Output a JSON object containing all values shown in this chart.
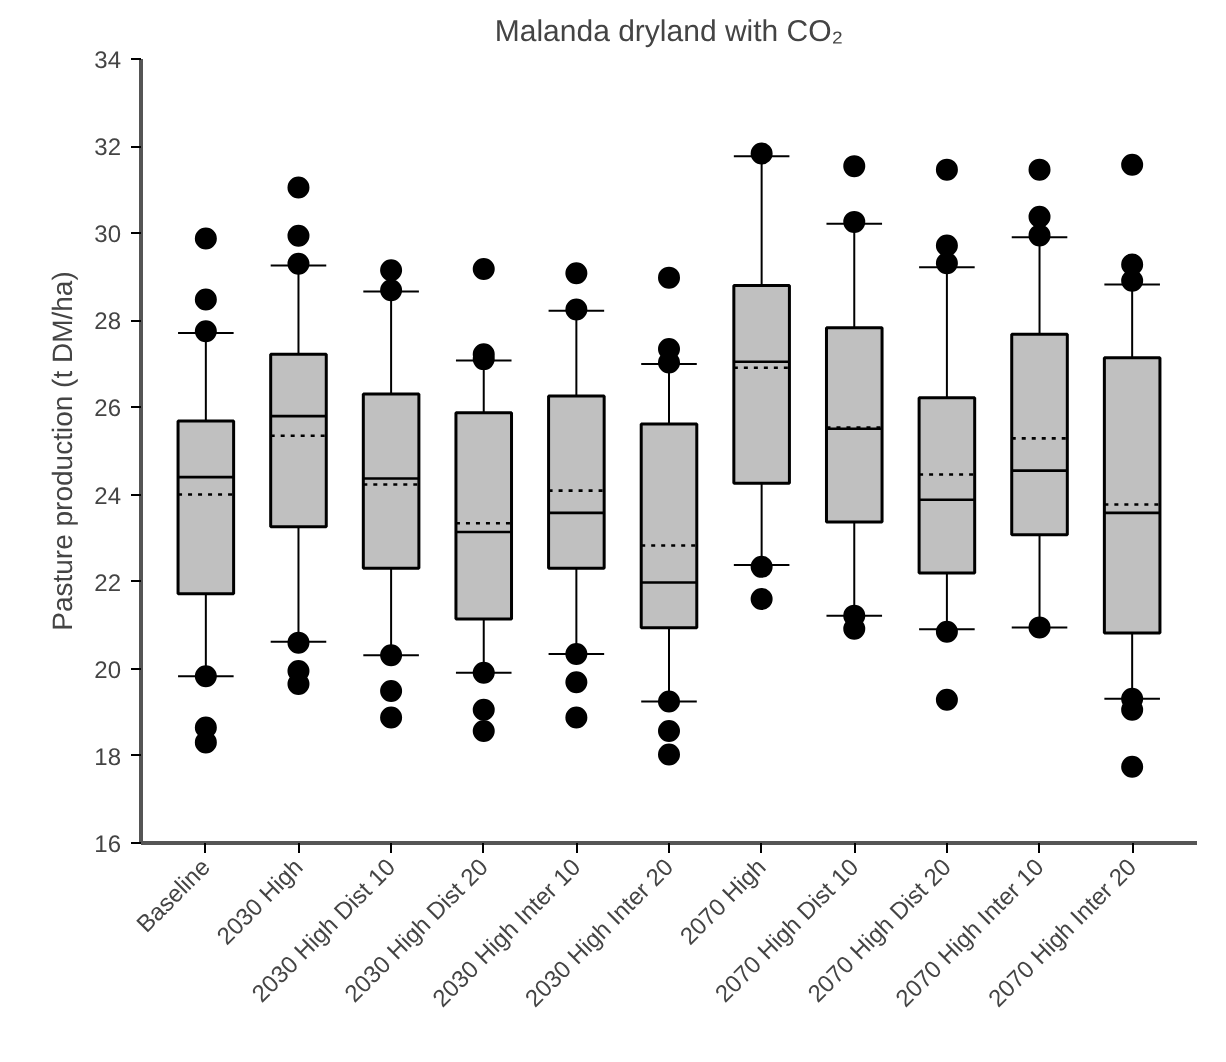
{
  "chart_data": {
    "type": "box",
    "title": "Malanda dryland with CO₂",
    "ylabel": "Pasture production (t DM/ha)",
    "categories": [
      "Baseline",
      "2030 High",
      "2030 High Dist 10",
      "2030 High Dist 20",
      "2030 High Inter 10",
      "2030 High Inter 20",
      "2070 High",
      "2070 High Dist 10",
      "2070 High Dist 20",
      "2070 High Inter 10",
      "2070 High Inter 20"
    ],
    "color": "#c0c0c0",
    "ylim": [
      16,
      34
    ],
    "yticks": [
      16,
      18,
      20,
      22,
      24,
      26,
      28,
      30,
      32,
      34
    ],
    "grid": false,
    "marker": "circle",
    "boxes": [
      {
        "low": 19.83,
        "q1": 21.72,
        "median": 24.4,
        "q3": 25.69,
        "high": 27.71,
        "mean": 24.0,
        "outliers": [
          29.88,
          28.48,
          27.75,
          19.83,
          18.65,
          18.31
        ]
      },
      {
        "low": 20.62,
        "q1": 23.26,
        "median": 25.8,
        "q3": 27.22,
        "high": 29.26,
        "mean": 25.35,
        "outliers": [
          31.05,
          29.94,
          29.3,
          20.6,
          19.95,
          19.65
        ]
      },
      {
        "low": 20.31,
        "q1": 22.31,
        "median": 24.37,
        "q3": 26.31,
        "high": 28.66,
        "mean": 24.23,
        "outliers": [
          29.15,
          28.69,
          20.31,
          19.49,
          18.88
        ]
      },
      {
        "low": 19.91,
        "q1": 21.14,
        "median": 23.14,
        "q3": 25.88,
        "high": 27.08,
        "mean": 23.34,
        "outliers": [
          29.18,
          27.22,
          27.11,
          19.91,
          19.06,
          18.57
        ]
      },
      {
        "low": 20.34,
        "q1": 22.31,
        "median": 23.58,
        "q3": 26.26,
        "high": 28.22,
        "mean": 24.09,
        "outliers": [
          29.08,
          28.25,
          20.34,
          19.69,
          18.88
        ]
      },
      {
        "low": 19.25,
        "q1": 20.94,
        "median": 21.98,
        "q3": 25.62,
        "high": 27.0,
        "mean": 22.83,
        "outliers": [
          28.98,
          27.34,
          27.03,
          19.25,
          18.57,
          18.03
        ]
      },
      {
        "low": 22.38,
        "q1": 24.26,
        "median": 27.05,
        "q3": 28.8,
        "high": 31.77,
        "mean": 26.91,
        "outliers": [
          31.83,
          22.34,
          21.6
        ]
      },
      {
        "low": 21.22,
        "q1": 23.37,
        "median": 25.51,
        "q3": 27.83,
        "high": 30.22,
        "mean": 25.54,
        "outliers": [
          31.54,
          30.26,
          21.22,
          20.92
        ]
      },
      {
        "low": 20.91,
        "q1": 22.2,
        "median": 23.88,
        "q3": 26.22,
        "high": 29.22,
        "mean": 24.46,
        "outliers": [
          31.46,
          29.72,
          29.31,
          20.85,
          19.29
        ]
      },
      {
        "low": 20.95,
        "q1": 23.08,
        "median": 24.55,
        "q3": 27.68,
        "high": 29.91,
        "mean": 25.29,
        "outliers": [
          31.46,
          30.38,
          29.95,
          20.95
        ]
      },
      {
        "low": 19.31,
        "q1": 20.82,
        "median": 23.58,
        "q3": 27.14,
        "high": 28.82,
        "mean": 23.77,
        "outliers": [
          31.57,
          29.28,
          28.91,
          19.31,
          19.06,
          17.75
        ]
      }
    ]
  }
}
